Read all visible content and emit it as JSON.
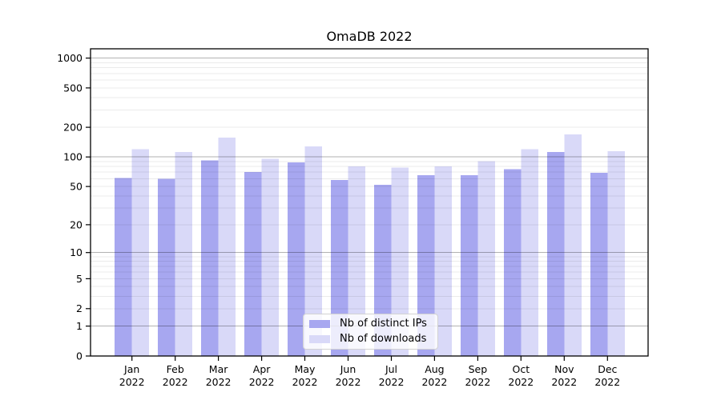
{
  "title": "OmaDB 2022",
  "chart_data": {
    "type": "bar",
    "title": "OmaDB 2022",
    "months": [
      "Jan",
      "Feb",
      "Mar",
      "Apr",
      "May",
      "Jun",
      "Jul",
      "Aug",
      "Sep",
      "Oct",
      "Nov",
      "Dec"
    ],
    "year_label": "2022",
    "categories": [
      "Jan 2022",
      "Feb 2022",
      "Mar 2022",
      "Apr 2022",
      "May 2022",
      "Jun 2022",
      "Jul 2022",
      "Aug 2022",
      "Sep 2022",
      "Oct 2022",
      "Nov 2022",
      "Dec 2022"
    ],
    "series": [
      {
        "name": "Nb of distinct IPs",
        "color": "#a7a7f0",
        "values": [
          61,
          60,
          92,
          70,
          88,
          58,
          52,
          65,
          65,
          75,
          112,
          69
        ]
      },
      {
        "name": "Nb of downloads",
        "color": "#d9d9f8",
        "values": [
          120,
          112,
          158,
          96,
          128,
          80,
          78,
          80,
          91,
          120,
          170,
          114
        ]
      }
    ],
    "yscale": "log10(1+x)",
    "yticks": [
      0,
      1,
      2,
      5,
      10,
      20,
      50,
      100,
      200,
      500,
      1000
    ],
    "ylim": [
      0,
      1240
    ],
    "grid": {
      "major_values": [
        1,
        10,
        100,
        1000
      ],
      "minor_values": [
        2,
        3,
        4,
        5,
        6,
        7,
        8,
        9,
        20,
        30,
        40,
        50,
        60,
        70,
        80,
        90,
        200,
        300,
        400,
        500,
        600,
        700,
        800,
        900
      ],
      "major_color": "rgba(0,0,0,0.30)",
      "minor_color": "rgba(0,0,0,0.08)"
    },
    "legend_position": "lower center",
    "axis_color": "#000000",
    "background_color": "#ffffff"
  }
}
